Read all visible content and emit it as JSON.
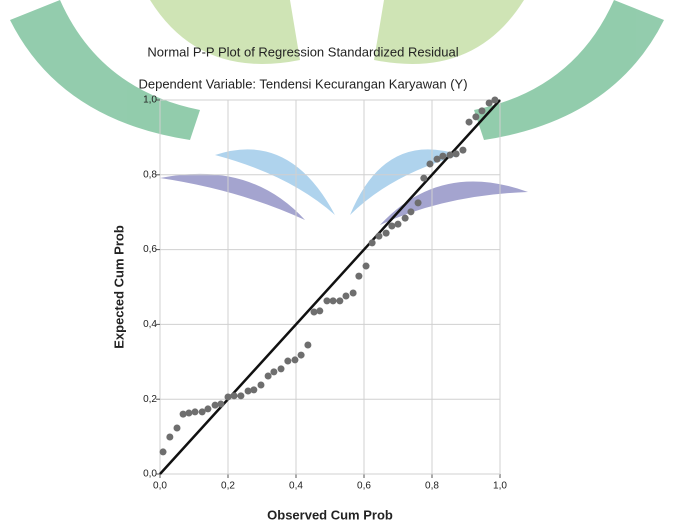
{
  "chart_data": {
    "type": "scatter",
    "title": "Normal P-P Plot of Regression Standardized Residual",
    "subtitle": "Dependent Variable: Tendensi Kecurangan Karyawan (Y)",
    "x_label": "Observed Cum Prob",
    "y_label": "Expected Cum Prob",
    "xlim": [
      0,
      1
    ],
    "ylim": [
      0,
      1
    ],
    "xticks": [
      {
        "value": 0,
        "label": "0,0"
      },
      {
        "value": 0.2,
        "label": "0,2"
      },
      {
        "value": 0.4,
        "label": "0,4"
      },
      {
        "value": 0.6,
        "label": "0,6"
      },
      {
        "value": 0.8,
        "label": "0,8"
      },
      {
        "value": 1,
        "label": "1,0"
      }
    ],
    "yticks": [
      {
        "value": 0,
        "label": "0,0"
      },
      {
        "value": 0.2,
        "label": "0,2"
      },
      {
        "value": 0.4,
        "label": "0,4"
      },
      {
        "value": 0.6,
        "label": "0,6"
      },
      {
        "value": 0.8,
        "label": "0,8"
      },
      {
        "value": 1,
        "label": "1,0"
      }
    ],
    "grid": true,
    "color": "#6e6e6e",
    "x": [
      0.009,
      0.029,
      0.05,
      0.068,
      0.085,
      0.103,
      0.124,
      0.141,
      0.162,
      0.179,
      0.2,
      0.218,
      0.238,
      0.259,
      0.276,
      0.297,
      0.318,
      0.335,
      0.356,
      0.376,
      0.397,
      0.415,
      0.435,
      0.453,
      0.47,
      0.491,
      0.509,
      0.529,
      0.547,
      0.568,
      0.585,
      0.606,
      0.624,
      0.644,
      0.665,
      0.682,
      0.7,
      0.721,
      0.738,
      0.759,
      0.776,
      0.794,
      0.815,
      0.832,
      0.853,
      0.871,
      0.891,
      0.909,
      0.929,
      0.947,
      0.968,
      0.985
    ],
    "values": [
      0.059,
      0.099,
      0.123,
      0.16,
      0.163,
      0.166,
      0.166,
      0.174,
      0.184,
      0.187,
      0.206,
      0.209,
      0.209,
      0.222,
      0.225,
      0.238,
      0.262,
      0.273,
      0.281,
      0.302,
      0.305,
      0.318,
      0.345,
      0.433,
      0.436,
      0.463,
      0.463,
      0.463,
      0.476,
      0.484,
      0.529,
      0.556,
      0.618,
      0.636,
      0.644,
      0.663,
      0.668,
      0.684,
      0.701,
      0.725,
      0.791,
      0.829,
      0.842,
      0.85,
      0.853,
      0.856,
      0.866,
      0.941,
      0.955,
      0.971,
      0.992,
      1.0
    ]
  }
}
